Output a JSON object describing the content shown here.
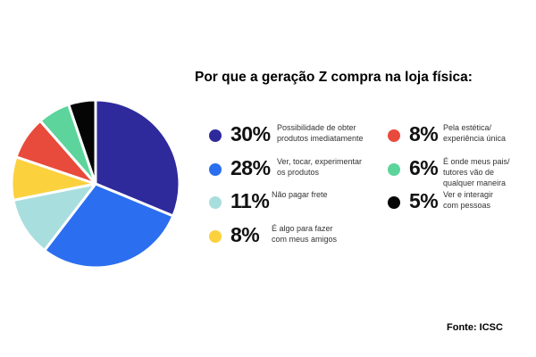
{
  "chart_data": {
    "type": "pie",
    "title": "Por que a geração Z compra na loja física:",
    "source": "Fonte: ICSC",
    "slices": [
      {
        "value": 30,
        "label": "30%",
        "description": [
          "Possibilidade de obter",
          "produtos imediatamente"
        ],
        "color": "#2e2a9c"
      },
      {
        "value": 28,
        "label": "28%",
        "description": [
          "Ver, tocar, experimentar",
          "os produtos"
        ],
        "color": "#2b6ef0"
      },
      {
        "value": 11,
        "label": "11%",
        "description": [
          "Não pagar frete"
        ],
        "color": "#a9dede"
      },
      {
        "value": 8,
        "label": "8%",
        "description": [
          "É algo para fazer",
          "com meus amigos"
        ],
        "color": "#fbd13e"
      },
      {
        "value": 8,
        "label": "8%",
        "description": [
          "Pela estética/",
          "experiência única"
        ],
        "color": "#e84a3b"
      },
      {
        "value": 6,
        "label": "6%",
        "description": [
          "É onde meus pais/",
          "tutores vão de",
          "qualquer maneira"
        ],
        "color": "#5cd49b"
      },
      {
        "value": 5,
        "label": "5%",
        "description": [
          "Ver e interagir",
          "com pessoas"
        ],
        "color": "#050505"
      }
    ]
  }
}
